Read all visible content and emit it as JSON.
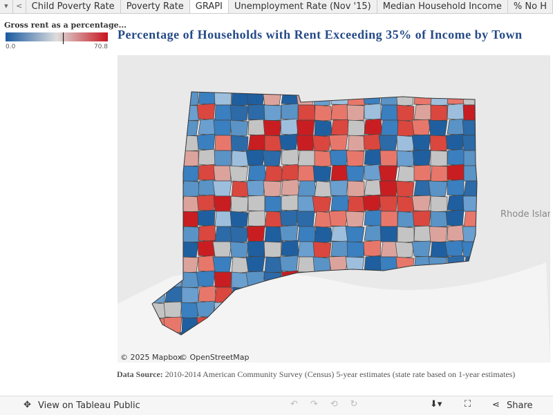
{
  "tabs": [
    "Child Poverty Rate",
    "Poverty Rate",
    "GRAPI",
    "Unemployment Rate (Nov '15)",
    "Median Household Income",
    "% No H"
  ],
  "active_tab": 2,
  "legend": {
    "title": "Gross rent as a percentage...",
    "min": {
      "value": 0,
      "label": "0.0"
    },
    "max": 70.8,
    "marker": 40
  },
  "title": "Percentage of Households with Rent Exceeding 35% of Income by Town",
  "map": {
    "region_label": "Rhode Islan",
    "attribution": [
      "© 2025 Mapbox",
      "© OpenStreetMap"
    ]
  },
  "source": {
    "label": "Data Source:",
    "text": "2010-2014 American Community Survey (Census) 5-year estimates (state rate based on 1-year estimates)"
  },
  "toolbar": {
    "view": "View on Tableau Public",
    "share": "Share"
  }
}
